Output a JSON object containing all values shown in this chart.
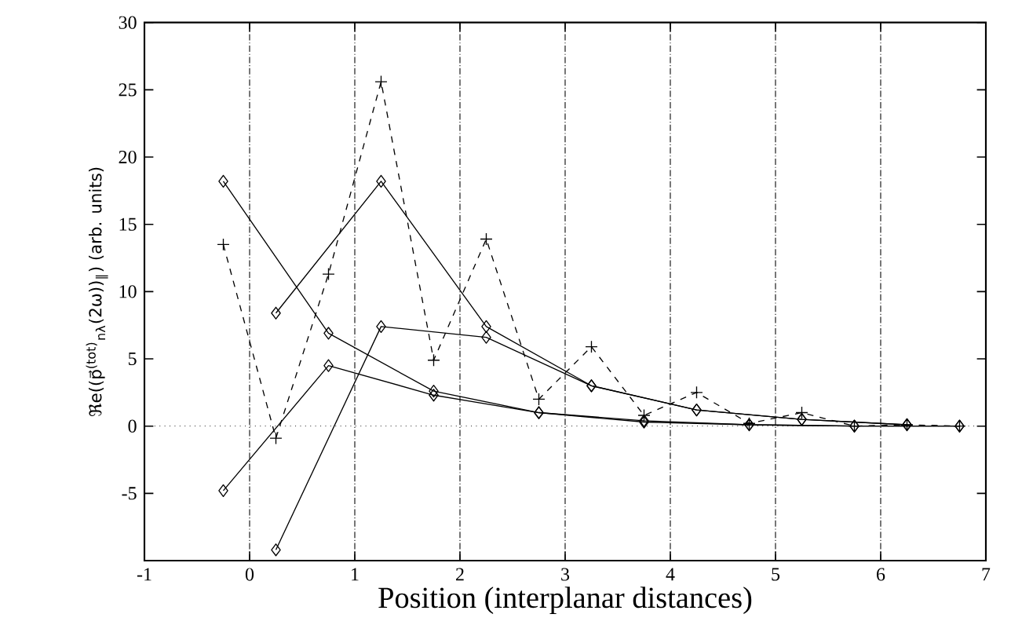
{
  "chart_data": {
    "type": "line",
    "xlabel": "Position (interplanar distances)",
    "ylabel": "ℜe((p⃗$^{(tot)}$$_{nλ}$(2ω))$_{∥}$) (arb. units)",
    "xlim": [
      -1,
      7
    ],
    "ylim": [
      -10,
      30
    ],
    "xticks": [
      -1,
      0,
      1,
      2,
      3,
      4,
      5,
      6,
      7
    ],
    "yticks": [
      -5,
      0,
      5,
      10,
      15,
      20,
      25,
      30
    ],
    "grid": "x",
    "ref_lines": [
      {
        "axis": "y",
        "value": 0,
        "line_style": "dotted"
      }
    ],
    "series": [
      {
        "color": "#000000",
        "marker": "cross",
        "line_style": "dashed",
        "x": [
          -0.25,
          0.25,
          0.75,
          1.25,
          1.75,
          2.25,
          2.75,
          3.25,
          3.75,
          4.25,
          4.75,
          5.25,
          5.75,
          6.25,
          6.75
        ],
        "values": [
          13.5,
          -0.9,
          11.3,
          25.6,
          4.9,
          13.9,
          2.0,
          5.9,
          0.8,
          2.5,
          0.2,
          1.0,
          0.0,
          0.1,
          0.0
        ]
      },
      {
        "color": "#000000",
        "marker": "diamond",
        "line_style": "solid",
        "x": [
          -0.25,
          0.75,
          1.75,
          2.75,
          3.75,
          4.75,
          5.75,
          6.75
        ],
        "values": [
          18.2,
          6.9,
          2.6,
          1.0,
          0.4,
          0.1,
          0.0,
          0.0
        ]
      },
      {
        "color": "#000000",
        "marker": "diamond",
        "line_style": "solid",
        "x": [
          0.25,
          1.25,
          2.25,
          3.25,
          4.25,
          5.25,
          6.25
        ],
        "values": [
          8.4,
          18.2,
          7.4,
          3.0,
          1.2,
          0.5,
          0.1
        ]
      },
      {
        "color": "#000000",
        "marker": "diamond",
        "line_style": "solid",
        "x": [
          -0.25,
          0.75,
          1.75,
          2.75,
          3.75,
          4.75,
          5.75,
          6.75
        ],
        "values": [
          -4.8,
          4.5,
          2.3,
          1.0,
          0.3,
          0.1,
          0.0,
          0.0
        ]
      },
      {
        "color": "#000000",
        "marker": "diamond",
        "line_style": "solid",
        "x": [
          0.25,
          1.25,
          2.25,
          3.25,
          4.25,
          5.25,
          6.25
        ],
        "values": [
          -9.2,
          7.4,
          6.6,
          3.0,
          1.2,
          0.5,
          0.1
        ]
      }
    ]
  }
}
